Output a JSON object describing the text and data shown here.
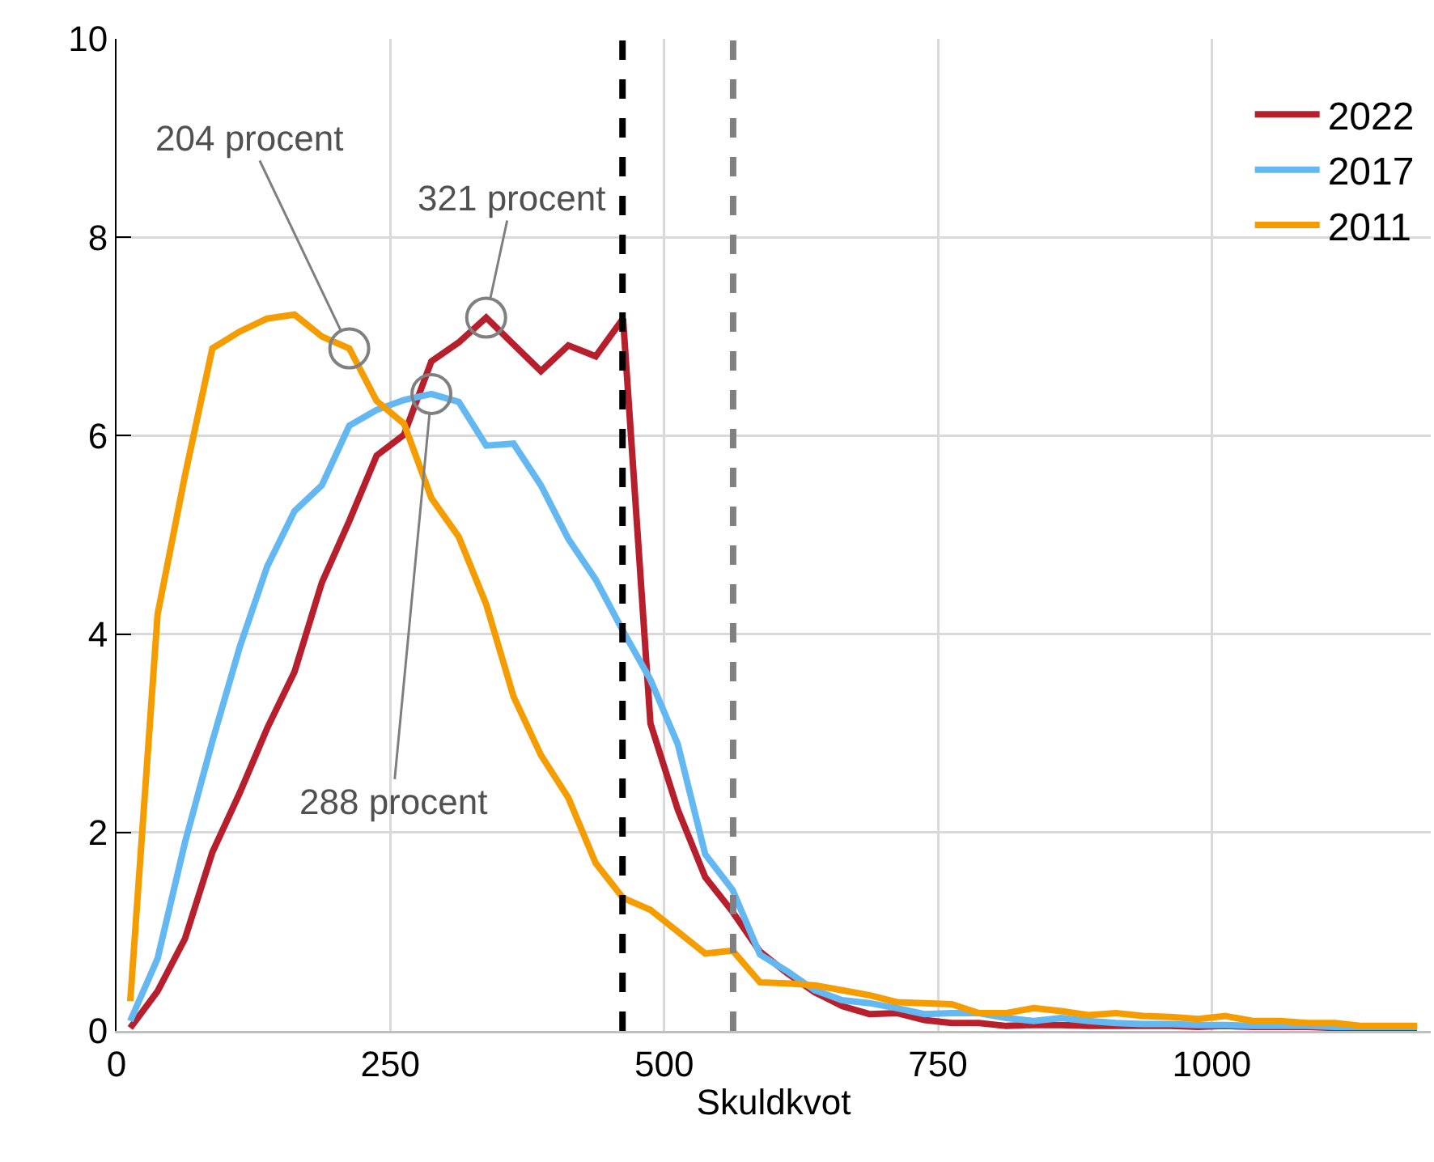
{
  "chart_data": {
    "type": "line",
    "xlabel": "Skuldkvot",
    "x": [
      12.5,
      37.5,
      62.5,
      87.5,
      112.5,
      137.5,
      162.5,
      187.5,
      212.5,
      237.5,
      262.5,
      287.5,
      312.5,
      337.5,
      362.5,
      387.5,
      412.5,
      437.5,
      462.5,
      487.5,
      512.5,
      537.5,
      562.5,
      587.5,
      612.5,
      637.5,
      662.5,
      687.5,
      712.5,
      737.5,
      762.5,
      787.5,
      812.5,
      837.5,
      862.5,
      887.5,
      912.5,
      937.5,
      962.5,
      987.5,
      1012.5,
      1037.5,
      1062.5,
      1087.5,
      1112.5,
      1137.5,
      1162.5,
      1187.5
    ],
    "series": [
      {
        "name": "2022",
        "color": "#b81f2d",
        "values": [
          0.03,
          0.4,
          0.93,
          1.8,
          2.4,
          3.05,
          3.62,
          4.52,
          5.14,
          5.8,
          6.01,
          6.75,
          6.94,
          7.19,
          6.92,
          6.65,
          6.91,
          6.8,
          7.18,
          3.1,
          2.23,
          1.55,
          1.2,
          0.8,
          0.58,
          0.39,
          0.25,
          0.17,
          0.18,
          0.11,
          0.08,
          0.08,
          0.05,
          0.06,
          0.06,
          0.05,
          0.05,
          0.05,
          0.05,
          0.04,
          0.05,
          0.04,
          0.04,
          0.04,
          0.03,
          0.03,
          0.03,
          0.03
        ]
      },
      {
        "name": "2017",
        "color": "#63b8f2",
        "values": [
          0.1,
          0.73,
          1.9,
          2.92,
          3.87,
          4.68,
          5.24,
          5.5,
          6.1,
          6.26,
          6.36,
          6.42,
          6.34,
          5.9,
          5.92,
          5.5,
          4.96,
          4.55,
          4.03,
          3.54,
          2.89,
          1.78,
          1.42,
          0.77,
          0.6,
          0.41,
          0.31,
          0.28,
          0.23,
          0.17,
          0.18,
          0.18,
          0.13,
          0.1,
          0.13,
          0.1,
          0.08,
          0.07,
          0.07,
          0.06,
          0.06,
          0.05,
          0.05,
          0.05,
          0.04,
          0.04,
          0.04,
          0.04
        ]
      },
      {
        "name": "2011",
        "color": "#f59c00",
        "values": [
          0.3,
          4.2,
          5.6,
          6.88,
          7.05,
          7.18,
          7.22,
          7.0,
          6.88,
          6.35,
          6.12,
          5.37,
          4.98,
          4.3,
          3.37,
          2.78,
          2.35,
          1.69,
          1.34,
          1.22,
          1.0,
          0.78,
          0.81,
          0.49,
          0.48,
          0.46,
          0.41,
          0.36,
          0.29,
          0.28,
          0.27,
          0.18,
          0.18,
          0.23,
          0.2,
          0.16,
          0.18,
          0.15,
          0.14,
          0.12,
          0.15,
          0.1,
          0.1,
          0.08,
          0.08,
          0.05,
          0.05,
          0.05
        ]
      }
    ],
    "xlim": [
      0,
      1200
    ],
    "xticks": [
      0,
      250,
      500,
      750,
      1000
    ],
    "ylim": [
      0,
      10
    ],
    "yticks": [
      0,
      2,
      4,
      6,
      8,
      10
    ],
    "grid": true,
    "legend": "top right",
    "marker": "none",
    "line_style": "solid",
    "ref_lines": [
      {
        "axis": "x",
        "value": 462,
        "color": "#000000",
        "line_style": "dashed"
      },
      {
        "axis": "x",
        "value": 563,
        "color": "#808080",
        "line_style": "dashed"
      }
    ],
    "annotations": [
      {
        "text": "204 procent",
        "x": 212.5,
        "y": 6.88
      },
      {
        "text": "321 procent",
        "x": 337.5,
        "y": 7.19
      },
      {
        "text": "288 procent",
        "x": 287.5,
        "y": 6.42
      }
    ]
  }
}
